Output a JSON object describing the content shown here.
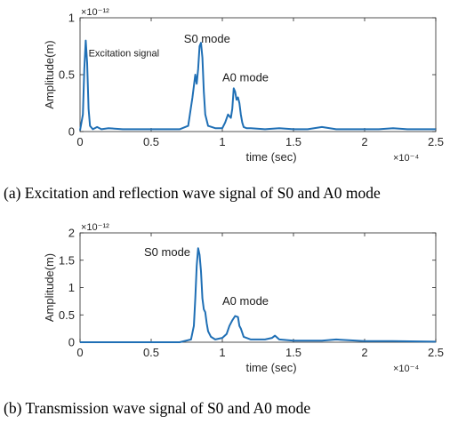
{
  "chart_data": [
    {
      "type": "line",
      "panel": "a",
      "caption": "(a) Excitation and reflection wave signal of S0 and A0 mode",
      "xlabel": "time (sec)",
      "ylabel": "Amplitude(m)",
      "x_multiplier": "×10⁻⁴",
      "y_multiplier": "×10⁻¹²",
      "xlim": [
        0,
        2.5
      ],
      "ylim": [
        0,
        1
      ],
      "xticks": [
        0,
        0.5,
        1,
        1.5,
        2,
        2.5
      ],
      "yticks": [
        0,
        0.5,
        1
      ],
      "grid": false,
      "line_color": "#1f6fb5",
      "series": [
        {
          "x": [
            0,
            0.02,
            0.03,
            0.04,
            0.05,
            0.06,
            0.07,
            0.09,
            0.12,
            0.15,
            0.2,
            0.3,
            0.4,
            0.5,
            0.6,
            0.7,
            0.76,
            0.79,
            0.81,
            0.82,
            0.83,
            0.84,
            0.85,
            0.86,
            0.87,
            0.88,
            0.9,
            0.95,
            1.0,
            1.02,
            1.04,
            1.06,
            1.07,
            1.08,
            1.09,
            1.1,
            1.11,
            1.12,
            1.13,
            1.14,
            1.15,
            1.17,
            1.2,
            1.3,
            1.4,
            1.5,
            1.6,
            1.7,
            1.8,
            1.9,
            2.0,
            2.1,
            2.2,
            2.3,
            2.4,
            2.5
          ],
          "y": [
            0.01,
            0.15,
            0.55,
            0.8,
            0.6,
            0.2,
            0.05,
            0.02,
            0.04,
            0.02,
            0.03,
            0.02,
            0.02,
            0.02,
            0.02,
            0.02,
            0.05,
            0.3,
            0.5,
            0.42,
            0.55,
            0.75,
            0.78,
            0.65,
            0.35,
            0.15,
            0.05,
            0.03,
            0.03,
            0.08,
            0.15,
            0.12,
            0.2,
            0.38,
            0.35,
            0.28,
            0.3,
            0.25,
            0.15,
            0.08,
            0.04,
            0.03,
            0.03,
            0.02,
            0.03,
            0.02,
            0.02,
            0.04,
            0.02,
            0.02,
            0.02,
            0.02,
            0.03,
            0.02,
            0.02,
            0.02
          ]
        }
      ],
      "annotations": [
        {
          "text": "Excitation signal",
          "x": 0.06,
          "y": 0.66
        },
        {
          "text": "S0 mode",
          "x": 0.73,
          "y": 0.78
        },
        {
          "text": "A0 mode",
          "x": 1.0,
          "y": 0.44
        }
      ]
    },
    {
      "type": "line",
      "panel": "b",
      "caption": "(b) Transmission wave signal of S0 and A0 mode",
      "xlabel": "time (sec)",
      "ylabel": "Amplitude(m)",
      "x_multiplier": "×10⁻⁴",
      "y_multiplier": "×10⁻¹²",
      "xlim": [
        0,
        2.5
      ],
      "ylim": [
        0,
        2
      ],
      "xticks": [
        0,
        0.5,
        1,
        1.5,
        2,
        2.5
      ],
      "yticks": [
        0,
        0.5,
        1,
        1.5,
        2
      ],
      "grid": false,
      "line_color": "#1f6fb5",
      "series": [
        {
          "x": [
            0,
            0.5,
            0.7,
            0.78,
            0.8,
            0.81,
            0.82,
            0.83,
            0.84,
            0.85,
            0.86,
            0.87,
            0.88,
            0.89,
            0.9,
            0.92,
            0.95,
            1.0,
            1.03,
            1.05,
            1.07,
            1.09,
            1.11,
            1.12,
            1.13,
            1.15,
            1.2,
            1.3,
            1.35,
            1.37,
            1.4,
            1.5,
            1.6,
            1.7,
            1.8,
            2.0,
            2.2,
            2.5
          ],
          "y": [
            0,
            0,
            0,
            0.05,
            0.3,
            0.8,
            1.4,
            1.72,
            1.6,
            1.3,
            0.8,
            0.6,
            0.55,
            0.35,
            0.2,
            0.1,
            0.05,
            0.08,
            0.15,
            0.3,
            0.4,
            0.48,
            0.46,
            0.3,
            0.25,
            0.1,
            0.05,
            0.05,
            0.08,
            0.12,
            0.05,
            0.03,
            0.03,
            0.03,
            0.05,
            0.02,
            0.02,
            0.01
          ]
        }
      ],
      "annotations": [
        {
          "text": "S0 mode",
          "x": 0.45,
          "y": 1.58
        },
        {
          "text": "A0 mode",
          "x": 1.0,
          "y": 0.68
        }
      ]
    }
  ]
}
